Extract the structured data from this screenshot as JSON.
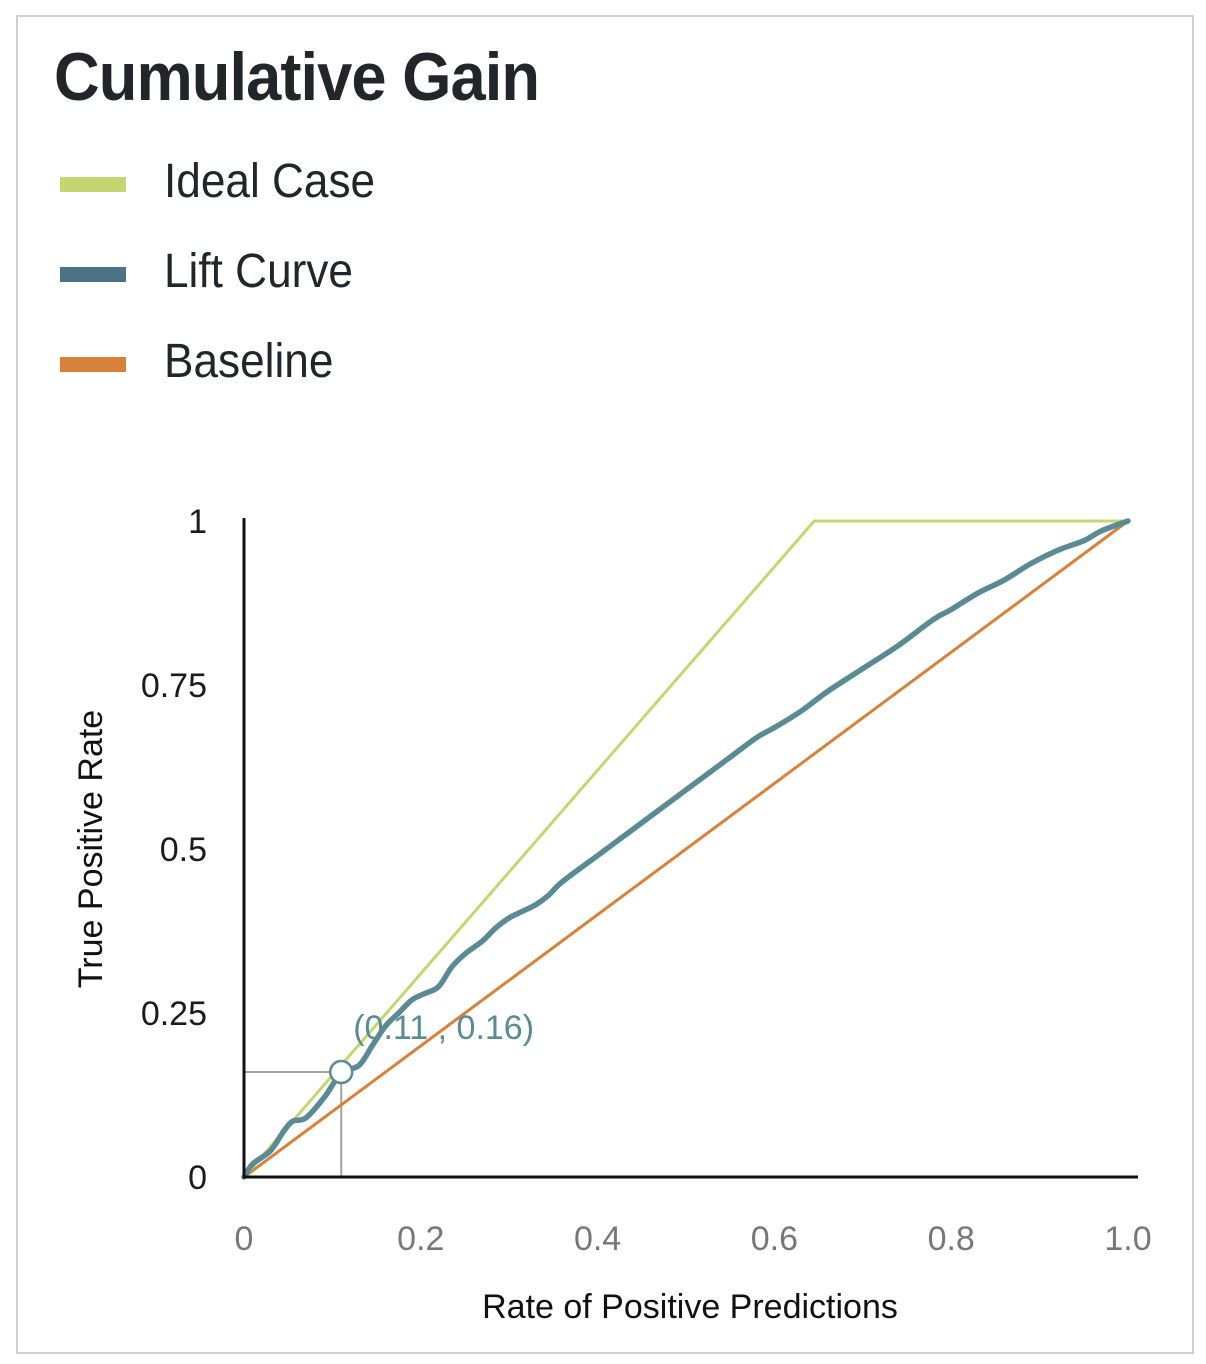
{
  "card": {
    "title": "Cumulative Gain"
  },
  "legend": [
    {
      "label": "Ideal Case",
      "color": "#c5d671"
    },
    {
      "label": "Lift Curve",
      "color": "#4b7385"
    },
    {
      "label": "Baseline",
      "color": "#d8813a"
    }
  ],
  "chart_data": {
    "type": "line",
    "title": "Cumulative Gain",
    "xlabel": "Rate of Positive Predictions",
    "ylabel": "True Positive Rate",
    "xlim": [
      0,
      1
    ],
    "ylim": [
      0,
      1
    ],
    "x_ticks": [
      {
        "value": 0,
        "label": "0"
      },
      {
        "value": 0.2,
        "label": "0.2"
      },
      {
        "value": 0.4,
        "label": "0.4"
      },
      {
        "value": 0.6,
        "label": "0.6"
      },
      {
        "value": 0.8,
        "label": "0.8"
      },
      {
        "value": 1.0,
        "label": "1.0"
      }
    ],
    "y_ticks": [
      {
        "value": 0,
        "label": "0"
      },
      {
        "value": 0.25,
        "label": "0.25"
      },
      {
        "value": 0.5,
        "label": "0.5"
      },
      {
        "value": 0.75,
        "label": "0.75"
      },
      {
        "value": 1,
        "label": "1"
      }
    ],
    "grid": false,
    "legend_position": "top-left",
    "series": [
      {
        "name": "Ideal Case",
        "color": "#c5d671",
        "x": [
          0,
          0.645,
          1.0
        ],
        "y": [
          0,
          1.0,
          1.0
        ]
      },
      {
        "name": "Lift Curve",
        "color": "#5a8a93",
        "x": [
          0,
          0.01,
          0.03,
          0.045,
          0.055,
          0.07,
          0.09,
          0.1,
          0.11,
          0.13,
          0.145,
          0.16,
          0.175,
          0.19,
          0.205,
          0.22,
          0.235,
          0.25,
          0.27,
          0.285,
          0.3,
          0.315,
          0.33,
          0.345,
          0.36,
          0.4,
          0.45,
          0.5,
          0.55,
          0.58,
          0.6,
          0.63,
          0.66,
          0.7,
          0.74,
          0.78,
          0.8,
          0.83,
          0.86,
          0.89,
          0.92,
          0.95,
          0.97,
          1.0
        ],
        "y": [
          0,
          0.02,
          0.04,
          0.07,
          0.085,
          0.09,
          0.12,
          0.14,
          0.16,
          0.17,
          0.2,
          0.23,
          0.25,
          0.27,
          0.28,
          0.29,
          0.32,
          0.34,
          0.36,
          0.38,
          0.395,
          0.405,
          0.415,
          0.43,
          0.45,
          0.49,
          0.54,
          0.59,
          0.64,
          0.67,
          0.685,
          0.71,
          0.74,
          0.775,
          0.81,
          0.85,
          0.865,
          0.89,
          0.91,
          0.935,
          0.955,
          0.97,
          0.985,
          1.0
        ]
      },
      {
        "name": "Baseline",
        "color": "#d8813a",
        "x": [
          0,
          1.0
        ],
        "y": [
          0,
          1.0
        ]
      }
    ],
    "annotations": [
      {
        "type": "highlight-point",
        "x": 0.11,
        "y": 0.16,
        "label": "(0.11 , 0.16)",
        "color": "#5a8a93",
        "guide_color": "#a3a3a3"
      }
    ]
  }
}
